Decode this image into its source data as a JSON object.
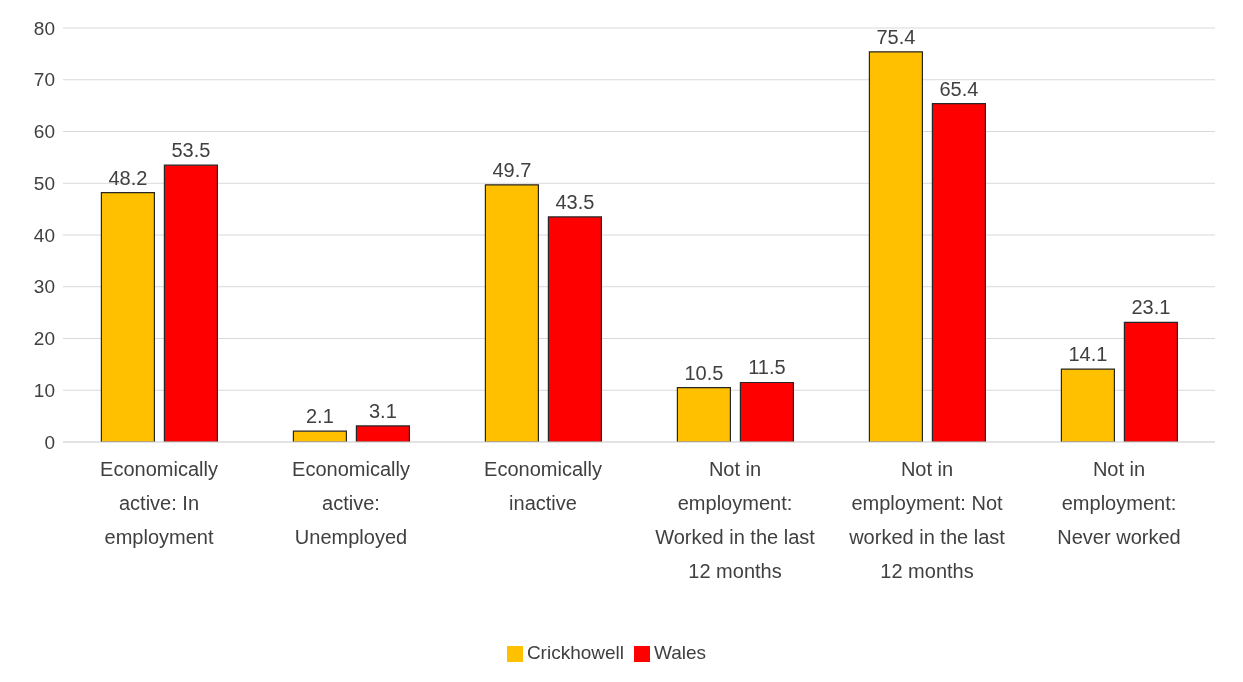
{
  "chart_data": {
    "type": "bar",
    "categories": [
      "Economically active: In employment",
      "Economically active: Unemployed",
      "Economically inactive",
      "Not in employment: Worked in the last 12 months",
      "Not in employment: Not worked in the last 12 months",
      "Not in employment: Never worked"
    ],
    "series": [
      {
        "name": "Crickhowell",
        "color": "#ffc000",
        "values": [
          48.2,
          2.1,
          49.7,
          10.5,
          75.4,
          14.1
        ]
      },
      {
        "name": "Wales",
        "color": "#ff0000",
        "values": [
          53.5,
          3.1,
          43.5,
          11.5,
          65.4,
          23.1
        ]
      }
    ],
    "ylim": [
      0,
      80
    ],
    "yticks": [
      0,
      10,
      20,
      30,
      40,
      50,
      60,
      70,
      80
    ],
    "grid": "y",
    "legend": "bottom",
    "data_labels": true
  }
}
